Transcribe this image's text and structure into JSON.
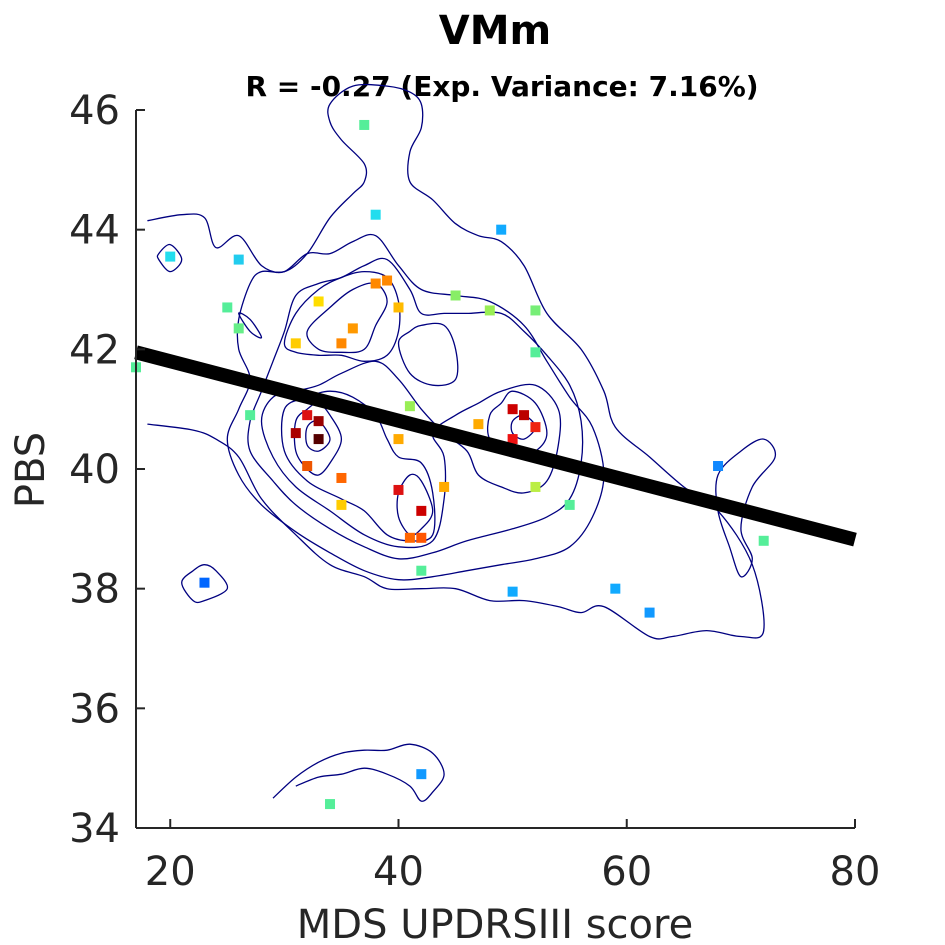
{
  "chart_data": {
    "type": "scatter",
    "title": "VMm",
    "subtitle": "R = -0.27 (Exp. Variance: 7.16%)",
    "xlabel": "MDS UPDRSIII score",
    "ylabel": "PBS",
    "xlim": [
      17,
      80
    ],
    "ylim": [
      34,
      46
    ],
    "xticks": [
      20,
      40,
      60,
      80
    ],
    "yticks": [
      34,
      36,
      38,
      40,
      42,
      44,
      46
    ],
    "grid": false,
    "regression_line": {
      "x": [
        17,
        80
      ],
      "y": [
        41.95,
        38.82
      ],
      "color": "#000000"
    },
    "contour_color": "#000080",
    "points": [
      {
        "x": 17,
        "y": 41.7,
        "color": "#55ee99"
      },
      {
        "x": 20,
        "y": 43.55,
        "color": "#22ddee"
      },
      {
        "x": 23,
        "y": 38.1,
        "color": "#0066ff"
      },
      {
        "x": 25,
        "y": 42.7,
        "color": "#55ee99"
      },
      {
        "x": 26,
        "y": 43.5,
        "color": "#22ccee"
      },
      {
        "x": 26,
        "y": 42.35,
        "color": "#66ee88"
      },
      {
        "x": 27,
        "y": 40.9,
        "color": "#55ee99"
      },
      {
        "x": 31,
        "y": 42.1,
        "color": "#ffcc00"
      },
      {
        "x": 31,
        "y": 40.6,
        "color": "#aa0000"
      },
      {
        "x": 32,
        "y": 40.9,
        "color": "#dd1111"
      },
      {
        "x": 32,
        "y": 40.05,
        "color": "#ee5500"
      },
      {
        "x": 33,
        "y": 42.8,
        "color": "#ffdd00"
      },
      {
        "x": 33,
        "y": 40.8,
        "color": "#990000"
      },
      {
        "x": 33,
        "y": 40.5,
        "color": "#550000"
      },
      {
        "x": 35,
        "y": 42.1,
        "color": "#ff8800"
      },
      {
        "x": 35,
        "y": 39.85,
        "color": "#ff6600"
      },
      {
        "x": 35,
        "y": 39.4,
        "color": "#ffcc00"
      },
      {
        "x": 36,
        "y": 42.35,
        "color": "#ff9900"
      },
      {
        "x": 37,
        "y": 45.75,
        "color": "#55ee99"
      },
      {
        "x": 38,
        "y": 44.25,
        "color": "#22ddee"
      },
      {
        "x": 38,
        "y": 43.1,
        "color": "#ff8800"
      },
      {
        "x": 39,
        "y": 43.15,
        "color": "#ff8800"
      },
      {
        "x": 40,
        "y": 42.7,
        "color": "#ffbb00"
      },
      {
        "x": 40,
        "y": 40.5,
        "color": "#ffaa00"
      },
      {
        "x": 40,
        "y": 39.65,
        "color": "#dd1111"
      },
      {
        "x": 41,
        "y": 41.05,
        "color": "#99ee55"
      },
      {
        "x": 41,
        "y": 38.85,
        "color": "#ff6600"
      },
      {
        "x": 42,
        "y": 38.85,
        "color": "#ff5500"
      },
      {
        "x": 42,
        "y": 39.3,
        "color": "#cc0000"
      },
      {
        "x": 42,
        "y": 38.3,
        "color": "#55ee99"
      },
      {
        "x": 42,
        "y": 34.9,
        "color": "#1199ff"
      },
      {
        "x": 34,
        "y": 34.4,
        "color": "#55ee99"
      },
      {
        "x": 44,
        "y": 39.7,
        "color": "#ffaa00"
      },
      {
        "x": 45,
        "y": 42.9,
        "color": "#88ee66"
      },
      {
        "x": 47,
        "y": 40.75,
        "color": "#ffaa00"
      },
      {
        "x": 48,
        "y": 42.65,
        "color": "#99ee55"
      },
      {
        "x": 49,
        "y": 44.0,
        "color": "#11aaff"
      },
      {
        "x": 50,
        "y": 41.0,
        "color": "#cc0000"
      },
      {
        "x": 50,
        "y": 40.5,
        "color": "#ee1111"
      },
      {
        "x": 50,
        "y": 37.95,
        "color": "#11aaff"
      },
      {
        "x": 51,
        "y": 40.9,
        "color": "#bb0000"
      },
      {
        "x": 52,
        "y": 40.7,
        "color": "#ee2211"
      },
      {
        "x": 52,
        "y": 42.65,
        "color": "#77ee77"
      },
      {
        "x": 52,
        "y": 41.95,
        "color": "#55ee99"
      },
      {
        "x": 52,
        "y": 39.7,
        "color": "#bbee44"
      },
      {
        "x": 55,
        "y": 39.4,
        "color": "#55ee99"
      },
      {
        "x": 59,
        "y": 38.0,
        "color": "#11aaff"
      },
      {
        "x": 62,
        "y": 37.6,
        "color": "#1199ff"
      },
      {
        "x": 68,
        "y": 40.05,
        "color": "#1188ff"
      },
      {
        "x": 72,
        "y": 38.8,
        "color": "#55ee99"
      }
    ],
    "contours": [
      [
        [
          18,
          44.15
        ],
        [
          21,
          44.25
        ],
        [
          23,
          44.2
        ],
        [
          24,
          43.7
        ],
        [
          26,
          43.9
        ],
        [
          28,
          43.4
        ],
        [
          30,
          43.3
        ],
        [
          32,
          43.6
        ],
        [
          34,
          44.2
        ],
        [
          36,
          44.6
        ],
        [
          37,
          44.8
        ],
        [
          37,
          45.1
        ],
        [
          35,
          45.5
        ],
        [
          34,
          45.8
        ],
        [
          34,
          46.1
        ],
        [
          36,
          46.4
        ],
        [
          39,
          46.4
        ],
        [
          41,
          46.3
        ],
        [
          42,
          46.1
        ],
        [
          42,
          45.7
        ],
        [
          41,
          45.3
        ],
        [
          41,
          44.8
        ],
        [
          43,
          44.5
        ],
        [
          45,
          44.1
        ],
        [
          47,
          43.9
        ],
        [
          49,
          43.8
        ],
        [
          51,
          43.4
        ],
        [
          53,
          42.6
        ],
        [
          56,
          42.0
        ],
        [
          58,
          41.3
        ],
        [
          59,
          40.7
        ],
        [
          62,
          40.2
        ],
        [
          65,
          39.7
        ],
        [
          68,
          39.3
        ],
        [
          71,
          38.4
        ],
        [
          72,
          37.3
        ],
        [
          70,
          37.2
        ],
        [
          67,
          37.3
        ],
        [
          64,
          37.2
        ],
        [
          62,
          37.2
        ],
        [
          58,
          37.7
        ],
        [
          56,
          37.6
        ],
        [
          54,
          37.7
        ],
        [
          51,
          37.8
        ],
        [
          48,
          37.8
        ],
        [
          45,
          38.0
        ],
        [
          42,
          38.0
        ],
        [
          39,
          38.0
        ],
        [
          37,
          38.2
        ],
        [
          34,
          38.4
        ],
        [
          31,
          38.9
        ],
        [
          28,
          39.5
        ],
        [
          26,
          40.2
        ],
        [
          24,
          40.5
        ],
        [
          22,
          40.65
        ],
        [
          18,
          40.75
        ]
      ],
      [
        [
          27,
          41.5
        ],
        [
          26,
          41.0
        ],
        [
          25,
          40.5
        ],
        [
          26,
          39.9
        ],
        [
          28,
          39.4
        ],
        [
          31,
          38.95
        ],
        [
          34,
          38.6
        ],
        [
          37,
          38.3
        ],
        [
          40,
          38.15
        ],
        [
          43,
          38.2
        ],
        [
          46,
          38.3
        ],
        [
          49,
          38.4
        ],
        [
          52,
          38.5
        ],
        [
          55,
          38.7
        ],
        [
          57,
          39.2
        ],
        [
          58,
          39.9
        ],
        [
          57,
          40.7
        ],
        [
          55,
          41.2
        ],
        [
          53,
          41.8
        ],
        [
          51,
          42.4
        ],
        [
          48,
          42.8
        ],
        [
          45,
          42.9
        ],
        [
          42,
          43.0
        ],
        [
          40,
          43.4
        ],
        [
          38,
          43.9
        ],
        [
          36,
          43.8
        ],
        [
          34,
          43.6
        ],
        [
          32,
          43.6
        ],
        [
          30,
          43.3
        ],
        [
          28,
          43.3
        ],
        [
          27,
          43.1
        ],
        [
          26,
          42.5
        ],
        [
          26,
          42.0
        ]
      ],
      [
        [
          28,
          41.3
        ],
        [
          27,
          40.8
        ],
        [
          27,
          40.3
        ],
        [
          29,
          39.8
        ],
        [
          31,
          39.4
        ],
        [
          34,
          39.0
        ],
        [
          37,
          38.7
        ],
        [
          40,
          38.5
        ],
        [
          43,
          38.6
        ],
        [
          46,
          38.8
        ],
        [
          50,
          39.0
        ],
        [
          53,
          39.2
        ],
        [
          55,
          39.5
        ],
        [
          56,
          40.1
        ],
        [
          56,
          40.8
        ],
        [
          55,
          41.4
        ],
        [
          53,
          41.9
        ],
        [
          51,
          42.3
        ],
        [
          49,
          42.6
        ],
        [
          46,
          42.6
        ],
        [
          44,
          42.6
        ],
        [
          42,
          42.6
        ],
        [
          41,
          43.0
        ],
        [
          39,
          43.5
        ],
        [
          37,
          43.4
        ],
        [
          35,
          43.2
        ],
        [
          33,
          43.1
        ],
        [
          31,
          42.9
        ],
        [
          30,
          42.3
        ],
        [
          29,
          41.8
        ]
      ],
      [
        [
          29,
          41.2
        ],
        [
          28,
          40.8
        ],
        [
          29,
          40.2
        ],
        [
          31,
          39.7
        ],
        [
          34,
          39.3
        ],
        [
          37,
          38.9
        ],
        [
          40,
          38.7
        ],
        [
          43,
          38.8
        ],
        [
          44,
          39.5
        ],
        [
          44,
          40.2
        ],
        [
          43,
          40.6
        ],
        [
          45,
          40.9
        ],
        [
          47,
          41.1
        ],
        [
          49,
          41.3
        ],
        [
          52,
          41.4
        ],
        [
          54,
          41.0
        ],
        [
          54,
          40.4
        ],
        [
          53,
          39.8
        ],
        [
          51,
          39.6
        ],
        [
          49,
          39.7
        ],
        [
          47,
          39.9
        ],
        [
          46,
          40.3
        ],
        [
          44,
          40.6
        ],
        [
          42,
          41.0
        ],
        [
          40,
          41.5
        ],
        [
          38,
          41.8
        ],
        [
          35,
          41.6
        ],
        [
          33,
          41.4
        ],
        [
          31,
          41.3
        ]
      ],
      [
        [
          30,
          41.0
        ],
        [
          30,
          40.3
        ],
        [
          32,
          39.8
        ],
        [
          35,
          39.5
        ],
        [
          37,
          39.3
        ],
        [
          39,
          38.9
        ],
        [
          41,
          38.8
        ],
        [
          43,
          38.9
        ],
        [
          43,
          39.6
        ],
        [
          42,
          40.1
        ],
        [
          40,
          40.2
        ],
        [
          39,
          40.5
        ],
        [
          38,
          40.9
        ],
        [
          36,
          41.2
        ],
        [
          34,
          41.3
        ],
        [
          32,
          41.2
        ]
      ],
      [
        [
          31,
          40.8
        ],
        [
          31,
          40.3
        ],
        [
          32,
          40.0
        ],
        [
          33,
          39.9
        ],
        [
          34,
          40.1
        ],
        [
          35,
          40.5
        ],
        [
          34,
          40.9
        ],
        [
          33,
          41.1
        ],
        [
          32,
          41.0
        ]
      ],
      [
        [
          32,
          40.7
        ],
        [
          32,
          40.4
        ],
        [
          33,
          40.3
        ],
        [
          34,
          40.5
        ],
        [
          33,
          40.8
        ]
      ],
      [
        [
          40,
          39.2
        ],
        [
          41,
          38.9
        ],
        [
          42,
          39.0
        ],
        [
          43,
          39.3
        ],
        [
          42,
          39.8
        ],
        [
          41,
          39.9
        ],
        [
          40,
          39.6
        ]
      ],
      [
        [
          48,
          40.9
        ],
        [
          48,
          40.5
        ],
        [
          50,
          40.2
        ],
        [
          52,
          40.3
        ],
        [
          53,
          40.6
        ],
        [
          52,
          41.1
        ],
        [
          50,
          41.3
        ],
        [
          49,
          41.1
        ]
      ],
      [
        [
          50,
          40.8
        ],
        [
          50,
          40.6
        ],
        [
          51,
          40.5
        ],
        [
          52,
          40.7
        ],
        [
          51,
          40.9
        ]
      ],
      [
        [
          30,
          42.1
        ],
        [
          31,
          42.6
        ],
        [
          33,
          43.0
        ],
        [
          35,
          43.2
        ],
        [
          37,
          43.3
        ],
        [
          39,
          43.2
        ],
        [
          40,
          42.8
        ],
        [
          40,
          42.3
        ],
        [
          39,
          41.9
        ],
        [
          37,
          41.8
        ],
        [
          35,
          41.9
        ],
        [
          33,
          41.9
        ],
        [
          31,
          41.95
        ]
      ],
      [
        [
          32,
          42.3
        ],
        [
          34,
          42.7
        ],
        [
          36,
          43.0
        ],
        [
          38,
          43.1
        ],
        [
          39,
          42.8
        ],
        [
          38,
          42.4
        ],
        [
          37,
          42.0
        ],
        [
          35,
          41.95
        ],
        [
          33,
          42.0
        ]
      ],
      [
        [
          40,
          42.1
        ],
        [
          41,
          41.6
        ],
        [
          43,
          41.4
        ],
        [
          45,
          41.5
        ],
        [
          45,
          42.0
        ],
        [
          44,
          42.4
        ],
        [
          42,
          42.4
        ],
        [
          41,
          42.3
        ]
      ],
      [
        [
          19,
          43.6
        ],
        [
          20,
          43.75
        ],
        [
          21,
          43.5
        ],
        [
          20,
          43.3
        ],
        [
          19,
          43.5
        ]
      ],
      [
        [
          26,
          42.6
        ],
        [
          27,
          42.3
        ],
        [
          28,
          42.2
        ],
        [
          27,
          42.5
        ]
      ],
      [
        [
          21,
          38.1
        ],
        [
          22,
          37.8
        ],
        [
          23,
          37.8
        ],
        [
          25,
          38.0
        ],
        [
          24,
          38.3
        ],
        [
          23,
          38.4
        ],
        [
          22,
          38.3
        ]
      ],
      [
        [
          68,
          39.9
        ],
        [
          70,
          40.3
        ],
        [
          72,
          40.5
        ],
        [
          73,
          40.2
        ],
        [
          71,
          39.7
        ],
        [
          70,
          39.0
        ],
        [
          71,
          38.5
        ],
        [
          70,
          38.2
        ],
        [
          69,
          38.7
        ],
        [
          68,
          39.3
        ]
      ],
      [
        [
          29,
          34.5
        ],
        [
          31,
          34.85
        ],
        [
          33,
          35.1
        ],
        [
          35,
          35.25
        ],
        [
          37,
          35.3
        ],
        [
          39,
          35.3
        ],
        [
          41,
          35.4
        ],
        [
          43,
          35.25
        ],
        [
          44,
          34.9
        ],
        [
          43,
          34.6
        ],
        [
          42,
          34.45
        ],
        [
          41,
          34.7
        ],
        [
          39,
          34.9
        ],
        [
          37,
          35.0
        ],
        [
          35,
          34.9
        ],
        [
          33,
          34.85
        ],
        [
          31,
          34.7
        ]
      ]
    ]
  }
}
